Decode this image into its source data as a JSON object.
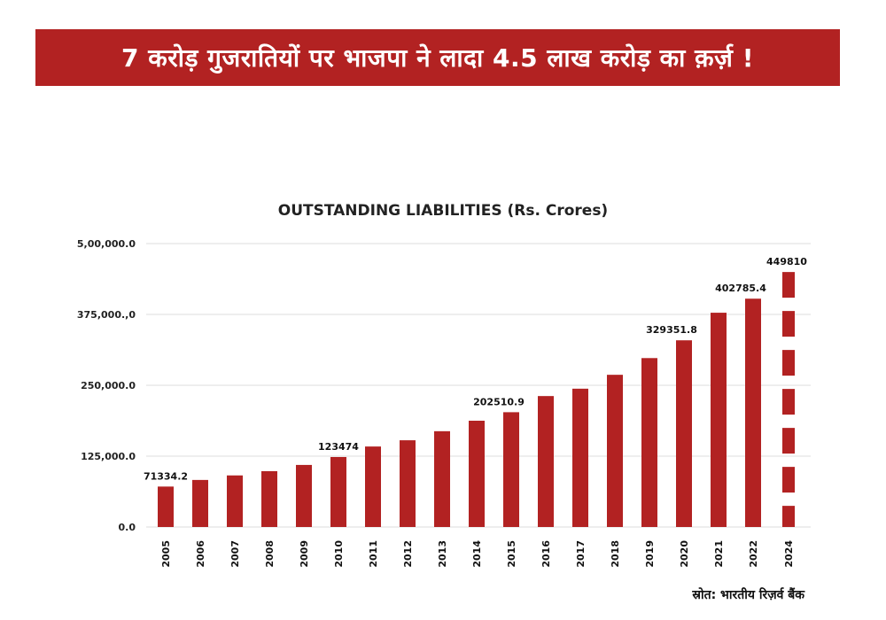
{
  "headline": "7 करोड़ गुजरातियों पर भाजपा ने लादा 4.5 लाख करोड़ का क़र्ज़ !",
  "source": "स्रोत: भारतीय रिज़र्व बैंक",
  "colors": {
    "banner": "#b22222",
    "bar": "#b22222",
    "grid": "#dddddd"
  },
  "chart_data": {
    "type": "bar",
    "title": "OUTSTANDING LIABILITIES (Rs. Crores)",
    "xlabel": "",
    "ylabel": "",
    "ylim": [
      0,
      500000
    ],
    "grid": true,
    "yticks": [
      0,
      125000,
      250000,
      375000,
      500000
    ],
    "ytick_labels": [
      "0.0",
      "125,000.0",
      "250,000.0",
      "375,000.,0",
      "5,00,000.0"
    ],
    "categories": [
      "2005",
      "2006",
      "2007",
      "2008",
      "2009",
      "2010",
      "2011",
      "2012",
      "2013",
      "2014",
      "2015",
      "2016",
      "2017",
      "2018",
      "2019",
      "2020",
      "2021",
      "2022",
      "2024"
    ],
    "values": [
      71334.2,
      83000,
      91000,
      98500,
      109500,
      123474,
      142000,
      153000,
      169000,
      187500,
      202510.9,
      231000,
      244000,
      268500,
      298000,
      329351.8,
      378000,
      402785.4,
      449810
    ],
    "data_labels": {
      "2005": "71334.2",
      "2010": "123474",
      "2015": "202510.9",
      "2020": "329351.8",
      "2022": "402785.4",
      "2024": "449810"
    },
    "dashed_categories": [
      "2024"
    ]
  }
}
